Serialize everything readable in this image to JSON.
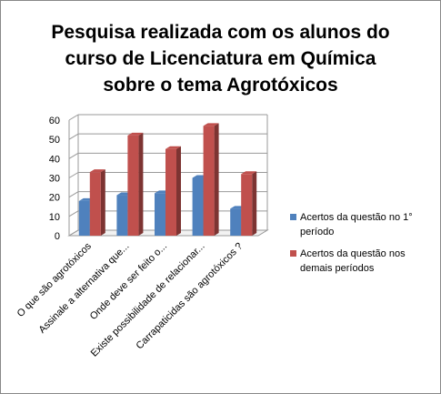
{
  "chart_data": {
    "type": "bar",
    "title": "Pesquisa realizada com os alunos do\ncurso de Licenciatura em Química\nsobre o tema Agrotóxicos",
    "categories": [
      "O que são agrotóxicos",
      "Assinale a alternativa que...",
      "Onde deve ser feito o...",
      "Existe possibilidade de relacionar...",
      "Carrapaticidas são agrotóxicos ?"
    ],
    "series": [
      {
        "name": "Acertos da questão no 1° período",
        "color": "#4f81bd",
        "values": [
          18,
          21,
          22,
          30,
          14
        ]
      },
      {
        "name": "Acertos da questão nos demais períodos",
        "color": "#c0504d",
        "values": [
          33,
          52,
          45,
          57,
          32
        ]
      }
    ],
    "ylim": [
      0,
      60
    ],
    "yticks": [
      0,
      10,
      20,
      30,
      40,
      50,
      60
    ],
    "grid": true,
    "legend": "right"
  }
}
